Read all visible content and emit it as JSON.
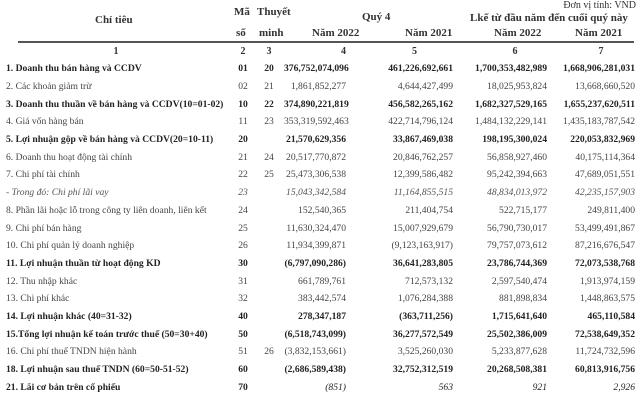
{
  "unit_label": "Đơn vị tính: VND",
  "headers": {
    "chi_tieu": "Chỉ tiêu",
    "ma": "Mã",
    "so": "số",
    "thuyet": "Thuyết",
    "minh": "minh",
    "quarter": "Quý 4",
    "ytd": "Lkế từ đầu năm đến cuối quý này",
    "q_2022": "Năm 2022",
    "q_2021": "Năm 2021",
    "y_2022": "Năm 2022",
    "y_2021": "Năm 2021"
  },
  "index_row": [
    "1",
    "2",
    "3",
    "4",
    "5",
    "6",
    "7"
  ],
  "rows": [
    {
      "label": "1. Doanh thu bán hàng và CCDV",
      "code": "01",
      "note": "20",
      "q2022": "376,752,074,096",
      "q2021": "461,226,692,661",
      "y2022": "1,700,353,482,989",
      "y2021": "1,668,906,281,031",
      "style": "b"
    },
    {
      "label": "2. Các khoản giảm trừ",
      "code": "02",
      "note": "21",
      "q2022": "1,861,852,277",
      "q2021": "4,644,427,499",
      "y2022": "18,025,953,824",
      "y2021": "13,668,660,520",
      "style": ""
    },
    {
      "label": "3. Doanh thu thuần về bán hàng và CCDV(10=01-02)",
      "code": "10",
      "note": "22",
      "q2022": "374,890,221,819",
      "q2021": "456,582,265,162",
      "y2022": "1,682,327,529,165",
      "y2021": "1,655,237,620,511",
      "style": "b"
    },
    {
      "label": "4. Giá vốn hàng bán",
      "code": "11",
      "note": "23",
      "q2022": "353,319,592,463",
      "q2021": "422,714,796,124",
      "y2022": "1,484,132,229,141",
      "y2021": "1,435,183,787,542",
      "style": ""
    },
    {
      "label": "5. Lợi nhuận gộp về bán hàng và CCDV(20=10-11)",
      "code": "20",
      "note": "",
      "q2022": "21,570,629,356",
      "q2021": "33,867,469,038",
      "y2022": "198,195,300,024",
      "y2021": "220,053,832,969",
      "style": "b"
    },
    {
      "label": "6. Doanh thu hoạt động tài chính",
      "code": "21",
      "note": "24",
      "q2022": "20,517,770,872",
      "q2021": "20,846,762,257",
      "y2022": "56,858,927,460",
      "y2021": "40,175,114,364",
      "style": ""
    },
    {
      "label": "7. Chi phí tài chính",
      "code": "22",
      "note": "25",
      "q2022": "25,473,306,538",
      "q2021": "12,399,586,482",
      "y2022": "95,242,394,663",
      "y2021": "47,689,051,551",
      "style": ""
    },
    {
      "label": "- Trong đó: Chi phí lãi vay",
      "code": "23",
      "note": "",
      "q2022": "15,043,342,584",
      "q2021": "11,164,855,515",
      "y2022": "48,834,013,972",
      "y2021": "42,235,157,903",
      "style": "i"
    },
    {
      "label": "8. Phần lãi hoặc lỗ trong công ty liên doanh, liên kết",
      "code": "24",
      "note": "",
      "q2022": "152,540,365",
      "q2021": "211,404,754",
      "y2022": "522,715,177",
      "y2021": "249,811,400",
      "style": ""
    },
    {
      "label": "9. Chi phí bán hàng",
      "code": "25",
      "note": "",
      "q2022": "11,630,324,470",
      "q2021": "15,007,929,679",
      "y2022": "56,790,730,017",
      "y2021": "53,499,491,867",
      "style": ""
    },
    {
      "label": "10. Chi phí quản lý doanh nghiệp",
      "code": "26",
      "note": "",
      "q2022": "11,934,399,871",
      "q2021": "(9,123,163,917)",
      "y2022": "79,757,073,612",
      "y2021": "87,216,676,547",
      "style": ""
    },
    {
      "label": "11. Lợi nhuận thuần từ hoạt động KD",
      "code": "30",
      "note": "",
      "q2022": "(6,797,090,286)",
      "q2021": "36,641,283,805",
      "y2022": "23,786,744,369",
      "y2021": "72,073,538,768",
      "style": "b"
    },
    {
      "label": "12. Thu nhập khác",
      "code": "31",
      "note": "",
      "q2022": "661,789,761",
      "q2021": "712,573,132",
      "y2022": "2,597,540,474",
      "y2021": "1,913,974,159",
      "style": ""
    },
    {
      "label": "13. Chi phí khác",
      "code": "32",
      "note": "",
      "q2022": "383,442,574",
      "q2021": "1,076,284,388",
      "y2022": "881,898,834",
      "y2021": "1,448,863,575",
      "style": ""
    },
    {
      "label": "14. Lợi nhuận khác (40=31-32)",
      "code": "40",
      "note": "",
      "q2022": "278,347,187",
      "q2021": "(363,711,256)",
      "y2022": "1,715,641,640",
      "y2021": "465,110,584",
      "style": "b"
    },
    {
      "label": "15.Tổng lợi nhuận kế toán trước thuế (50=30+40)",
      "code": "50",
      "note": "",
      "q2022": "(6,518,743,099)",
      "q2021": "36,277,572,549",
      "y2022": "25,502,386,009",
      "y2021": "72,538,649,352",
      "style": "b"
    },
    {
      "label": "16. Chi phí thuế TNDN hiện hành",
      "code": "51",
      "note": "26",
      "q2022": "(3,832,153,661)",
      "q2021": "3,525,260,030",
      "y2022": "5,233,877,628",
      "y2021": "11,724,732,596",
      "style": ""
    },
    {
      "label": "18. Lợi nhuận sau thuế TNDN (60=50-51-52)",
      "code": "60",
      "note": "",
      "q2022": "(2,686,589,438)",
      "q2021": "32,752,312,519",
      "y2022": "20,268,508,381",
      "y2021": "60,813,916,756",
      "style": "b"
    },
    {
      "label": "21. Lãi cơ bản trên cổ phiếu",
      "code": "70",
      "note": "",
      "q2022": "(851)",
      "q2021": "563",
      "y2022": "921",
      "y2021": "2,926",
      "style": "b eps"
    }
  ]
}
